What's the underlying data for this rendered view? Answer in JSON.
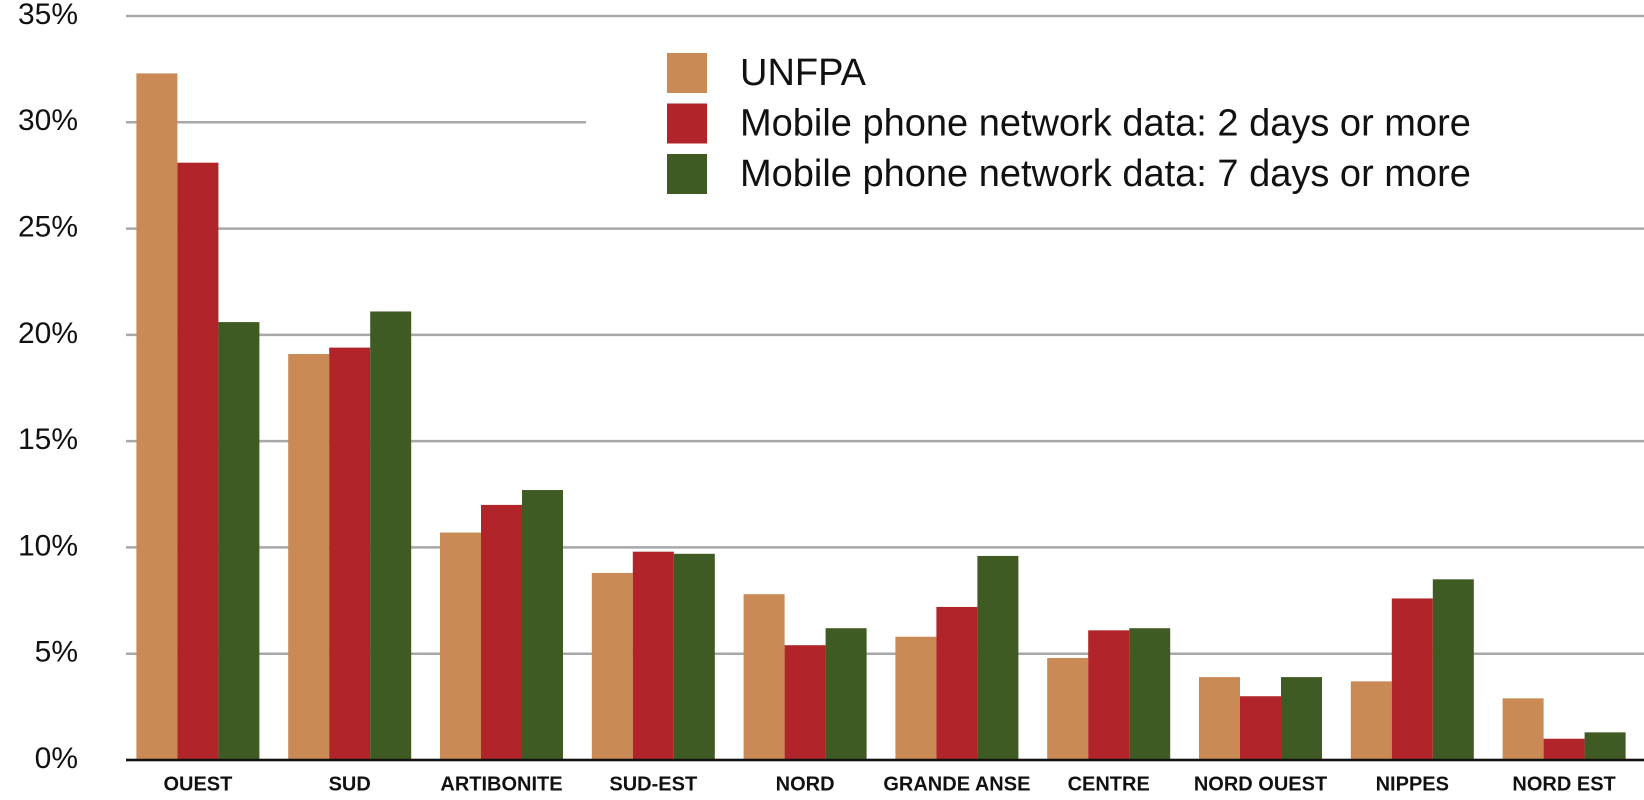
{
  "chart_data": {
    "type": "bar",
    "categories": [
      "OUEST",
      "SUD",
      "ARTIBONITE",
      "SUD-EST",
      "NORD",
      "GRANDE ANSE",
      "CENTRE",
      "NORD OUEST",
      "NIPPES",
      "NORD EST"
    ],
    "series": [
      {
        "name": "UNFPA",
        "color": "#c98a55",
        "values": [
          32.3,
          19.1,
          10.7,
          8.8,
          7.8,
          5.8,
          4.8,
          3.9,
          3.7,
          2.9
        ]
      },
      {
        "name": "Mobile phone network data: 2 days or more",
        "color": "#b0242a",
        "values": [
          28.1,
          19.4,
          12.0,
          9.8,
          5.4,
          7.2,
          6.1,
          3.0,
          7.6,
          1.0
        ]
      },
      {
        "name": "Mobile phone network data: 7 days or more",
        "color": "#3f5a23",
        "values": [
          20.6,
          21.1,
          12.7,
          9.7,
          6.2,
          9.6,
          6.2,
          3.9,
          8.5,
          1.3
        ]
      }
    ],
    "ylim": [
      0,
      35
    ],
    "yticks": [
      {
        "value": 0,
        "label": "0%"
      },
      {
        "value": 5,
        "label": "5%"
      },
      {
        "value": 10,
        "label": "10%"
      },
      {
        "value": 15,
        "label": "15%"
      },
      {
        "value": 20,
        "label": "20%"
      },
      {
        "value": 25,
        "label": "25%"
      },
      {
        "value": 30,
        "label": "30%"
      },
      {
        "value": 35,
        "label": "35%"
      }
    ],
    "grid": true,
    "legend": "top-right"
  }
}
